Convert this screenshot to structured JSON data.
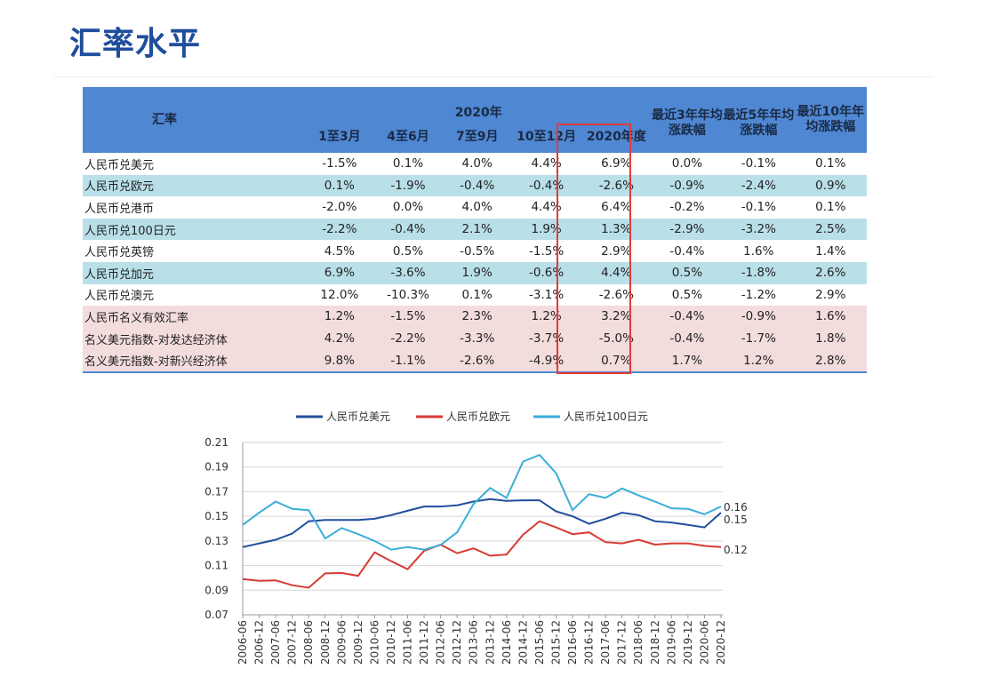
{
  "title": "汇率水平",
  "table": {
    "corner": "汇率",
    "group_header": "2020年",
    "columns": [
      "1至3月",
      "4至6月",
      "7至9月",
      "10至12月",
      "2020年度",
      "最近3年年均涨跌幅",
      "最近5年年均涨跌幅",
      "最近10年年均涨跌幅"
    ],
    "rows": [
      {
        "label": "人民币兑美元",
        "values": [
          "-1.5%",
          "0.1%",
          "4.0%",
          "4.4%",
          "6.9%",
          "0.0%",
          "-0.1%",
          "0.1%"
        ]
      },
      {
        "label": "人民币兑欧元",
        "values": [
          "0.1%",
          "-1.9%",
          "-0.4%",
          "-0.4%",
          "-2.6%",
          "-0.9%",
          "-2.4%",
          "0.9%"
        ]
      },
      {
        "label": "人民币兑港币",
        "values": [
          "-2.0%",
          "0.0%",
          "4.0%",
          "4.4%",
          "6.4%",
          "-0.2%",
          "-0.1%",
          "0.1%"
        ]
      },
      {
        "label": "人民币兑100日元",
        "values": [
          "-2.2%",
          "-0.4%",
          "2.1%",
          "1.9%",
          "1.3%",
          "-2.9%",
          "-3.2%",
          "2.5%"
        ]
      },
      {
        "label": "人民币兑英镑",
        "values": [
          "4.5%",
          "0.5%",
          "-0.5%",
          "-1.5%",
          "2.9%",
          "-0.4%",
          "1.6%",
          "1.4%"
        ]
      },
      {
        "label": "人民币兑加元",
        "values": [
          "6.9%",
          "-3.6%",
          "1.9%",
          "-0.6%",
          "4.4%",
          "0.5%",
          "-1.8%",
          "2.6%"
        ]
      },
      {
        "label": "人民币兑澳元",
        "values": [
          "12.0%",
          "-10.3%",
          "0.1%",
          "-3.1%",
          "-2.6%",
          "0.5%",
          "-1.2%",
          "2.9%"
        ]
      },
      {
        "label": "人民币名义有效汇率",
        "values": [
          "1.2%",
          "-1.5%",
          "2.3%",
          "1.2%",
          "3.2%",
          "-0.4%",
          "-0.9%",
          "1.6%"
        ]
      },
      {
        "label": "名义美元指数-对发达经济体",
        "values": [
          "4.2%",
          "-2.2%",
          "-3.3%",
          "-3.7%",
          "-5.0%",
          "-0.4%",
          "-1.7%",
          "1.8%"
        ]
      },
      {
        "label": "名义美元指数-对新兴经济体",
        "values": [
          "9.8%",
          "-1.1%",
          "-2.6%",
          "-4.9%",
          "0.7%",
          "1.7%",
          "1.2%",
          "2.8%"
        ]
      }
    ],
    "highlighted_column": "2020年度",
    "colors": {
      "header": "#4f87d2",
      "band_blue": "#b9dfe9",
      "band_pink": "#f3dcdc",
      "highlight_box": "#e23a3a"
    }
  },
  "chart_data": {
    "type": "line",
    "title": "",
    "xlabel": "",
    "ylabel": "",
    "ylim": [
      0.07,
      0.21
    ],
    "yticks": [
      "0.21",
      "0.19",
      "0.17",
      "0.15",
      "0.13",
      "0.11",
      "0.09",
      "0.07"
    ],
    "grid": true,
    "legend": "top",
    "x": [
      "2006-06",
      "2006-12",
      "2007-06",
      "2007-12",
      "2008-06",
      "2008-12",
      "2009-06",
      "2009-12",
      "2010-06",
      "2010-12",
      "2011-06",
      "2011-12",
      "2012-06",
      "2012-12",
      "2013-06",
      "2013-12",
      "2014-06",
      "2014-12",
      "2015-06",
      "2015-12",
      "2016-06",
      "2016-12",
      "2017-06",
      "2017-12",
      "2018-06",
      "2018-12",
      "2019-06",
      "2019-12",
      "2020-06",
      "2020-12"
    ],
    "series": [
      {
        "name": "人民币兑美元",
        "color": "#1f4e9c",
        "end_label": "0.15",
        "values": [
          0.125,
          0.128,
          0.131,
          0.136,
          0.146,
          0.147,
          0.147,
          0.147,
          0.148,
          0.151,
          0.1545,
          0.158,
          0.158,
          0.159,
          0.162,
          0.164,
          0.1625,
          0.163,
          0.163,
          0.154,
          0.15,
          0.144,
          0.148,
          0.153,
          0.151,
          0.146,
          0.145,
          0.143,
          0.141,
          0.153
        ]
      },
      {
        "name": "人民币兑欧元",
        "color": "#d83a34",
        "end_label": "0.12",
        "values": [
          0.099,
          0.0976,
          0.098,
          0.094,
          0.092,
          0.1036,
          0.104,
          0.1017,
          0.1207,
          0.1136,
          0.107,
          0.122,
          0.127,
          0.12,
          0.124,
          0.118,
          0.119,
          0.135,
          0.146,
          0.141,
          0.1355,
          0.137,
          0.129,
          0.128,
          0.131,
          0.127,
          0.128,
          0.128,
          0.126,
          0.125
        ]
      },
      {
        "name": "人民币兑100日元",
        "color": "#3aaed8",
        "end_label": "0.16",
        "values": [
          0.143,
          0.153,
          0.162,
          0.156,
          0.155,
          0.132,
          0.1405,
          0.1355,
          0.13,
          0.123,
          0.125,
          0.123,
          0.1267,
          0.137,
          0.16,
          0.173,
          0.165,
          0.1945,
          0.1998,
          0.185,
          0.155,
          0.168,
          0.165,
          0.1726,
          0.167,
          0.162,
          0.1565,
          0.156,
          0.1517,
          0.158
        ]
      }
    ]
  }
}
